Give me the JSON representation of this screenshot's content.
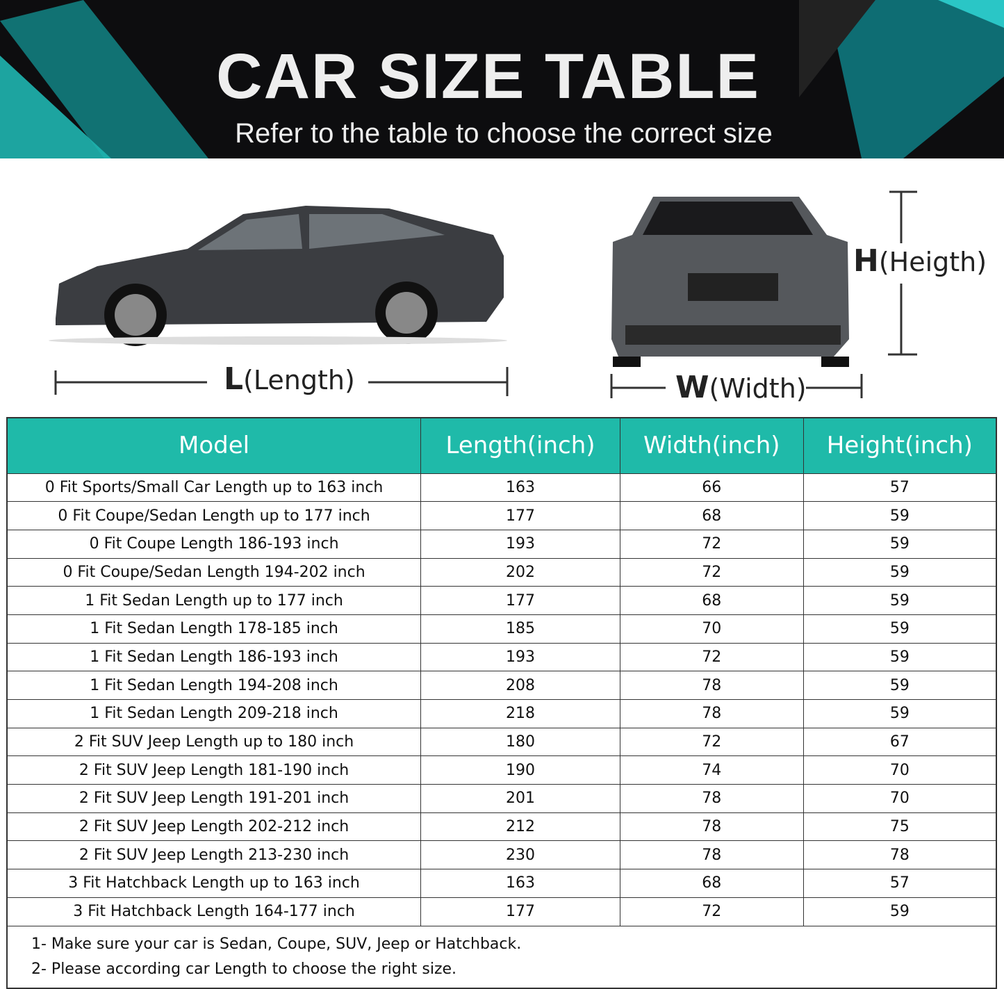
{
  "banner": {
    "title": "CAR SIZE TABLE",
    "subtitle": "Refer to the table to choose the correct size"
  },
  "dimensions": {
    "length": {
      "letter": "L",
      "word": "(Length)"
    },
    "width": {
      "letter": "W",
      "word": "(Width)"
    },
    "height": {
      "letter": "H",
      "word": "(Heigth)"
    }
  },
  "colors": {
    "header": "#1fbaa9",
    "banner": "#0d0d0f",
    "accent": "#1aa9a9"
  },
  "table": {
    "headers": [
      "Model",
      "Length(inch)",
      "Width(inch)",
      "Height(inch)"
    ],
    "rows": [
      [
        "0 Fit Sports/Small Car Length up to 163 inch",
        "163",
        "66",
        "57"
      ],
      [
        "0 Fit Coupe/Sedan Length up to 177 inch",
        "177",
        "68",
        "59"
      ],
      [
        "0 Fit Coupe Length 186-193 inch",
        "193",
        "72",
        "59"
      ],
      [
        "0 Fit Coupe/Sedan Length 194-202 inch",
        "202",
        "72",
        "59"
      ],
      [
        "1 Fit Sedan Length up to 177 inch",
        "177",
        "68",
        "59"
      ],
      [
        "1 Fit Sedan Length 178-185 inch",
        "185",
        "70",
        "59"
      ],
      [
        "1 Fit Sedan Length 186-193 inch",
        "193",
        "72",
        "59"
      ],
      [
        "1 Fit Sedan Length 194-208 inch",
        "208",
        "78",
        "59"
      ],
      [
        "1 Fit Sedan Length 209-218 inch",
        "218",
        "78",
        "59"
      ],
      [
        "2 Fit SUV Jeep Length up to 180 inch",
        "180",
        "72",
        "67"
      ],
      [
        "2 Fit SUV Jeep Length 181-190 inch",
        "190",
        "74",
        "70"
      ],
      [
        "2 Fit SUV Jeep Length 191-201 inch",
        "201",
        "78",
        "70"
      ],
      [
        "2 Fit SUV Jeep Length 202-212 inch",
        "212",
        "78",
        "75"
      ],
      [
        "2 Fit SUV Jeep Length 213-230 inch",
        "230",
        "78",
        "78"
      ],
      [
        "3 Fit Hatchback Length up to 163 inch",
        "163",
        "68",
        "57"
      ],
      [
        "3 Fit Hatchback Length 164-177 inch",
        "177",
        "72",
        "59"
      ]
    ],
    "notes": [
      "1- Make sure your car is Sedan, Coupe, SUV, Jeep or Hatchback.",
      "2- Please according car Length to choose the right size."
    ]
  }
}
